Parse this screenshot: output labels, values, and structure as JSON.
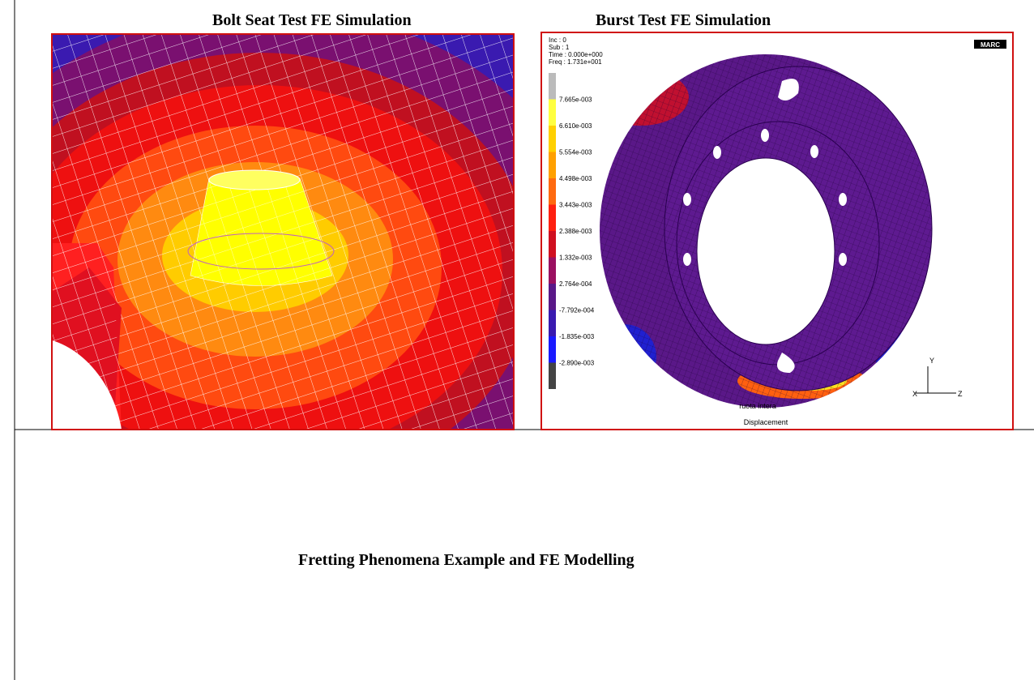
{
  "top_row": {
    "left": {
      "caption": "Bolt Seat Test FE Simulation"
    },
    "right": {
      "caption": "Burst Test FE Simulation",
      "plot": {
        "header": [
          "Inc :   0",
          "Sub :   1",
          "Time : 0.000e+000",
          "Freq : 1.731e+001"
        ],
        "legend": [
          "7.665e-003",
          "6.610e-003",
          "5.554e-003",
          "4.498e-003",
          "3.443e-003",
          "2.388e-003",
          "1.332e-003",
          "2.764e-004",
          "-7.792e-004",
          "-1.835e-003",
          "-2.890e-003"
        ],
        "logo": "MARC",
        "model": "ruota intera",
        "quantity": "Displacement",
        "axes": [
          "Y",
          "X",
          "Z"
        ]
      }
    }
  },
  "bottom_row": {
    "caption": "Fretting Phenomena Example and FE Modelling"
  }
}
